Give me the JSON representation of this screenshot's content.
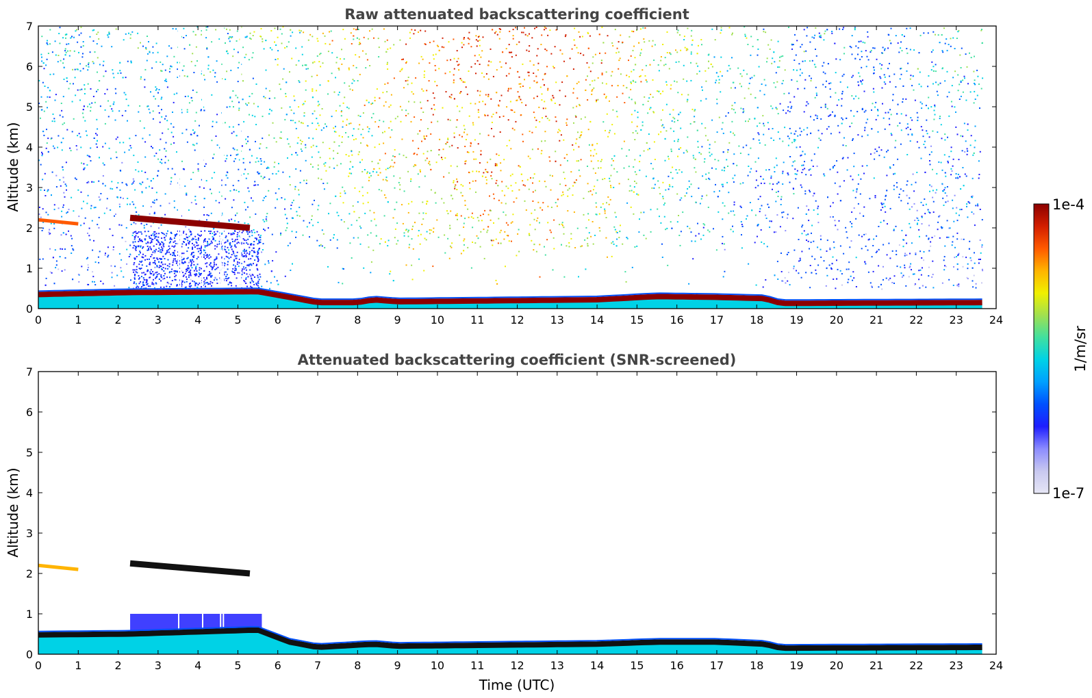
{
  "chart_data": [
    {
      "type": "heatmap",
      "title": "Raw attenuated backscattering coefficient",
      "xlabel": "",
      "ylabel": "Altitude (km)",
      "xlim": [
        0,
        24
      ],
      "ylim": [
        0,
        7
      ],
      "xticks": [
        "0",
        "1",
        "2",
        "3",
        "4",
        "5",
        "6",
        "7",
        "8",
        "9",
        "10",
        "11",
        "12",
        "13",
        "14",
        "15",
        "16",
        "17",
        "18",
        "19",
        "20",
        "21",
        "22",
        "23",
        "24"
      ],
      "yticks": [
        "0",
        "1",
        "2",
        "3",
        "4",
        "5",
        "6",
        "7"
      ],
      "data_time_range": [
        0,
        23.65
      ],
      "surface_layer_top_km": [
        [
          0,
          0.35
        ],
        [
          2.3,
          0.4
        ],
        [
          5.5,
          0.42
        ],
        [
          6.3,
          0.28
        ],
        [
          7,
          0.15
        ],
        [
          8,
          0.15
        ],
        [
          8.4,
          0.22
        ],
        [
          9,
          0.17
        ],
        [
          14,
          0.22
        ],
        [
          15.5,
          0.3
        ],
        [
          17,
          0.28
        ],
        [
          18.2,
          0.25
        ],
        [
          18.6,
          0.13
        ],
        [
          23.6,
          0.15
        ]
      ],
      "cloud_layers": [
        {
          "x_range": [
            2.3,
            5.3
          ],
          "altitude_km": [
            2.25,
            2.0
          ]
        },
        {
          "x_range": [
            0.0,
            1.0
          ],
          "altitude_km": [
            2.2,
            2.1
          ]
        }
      ],
      "missing_profiles_utc": [
        3.5,
        3.55,
        4.1,
        4.55,
        4.62,
        5.05
      ]
    },
    {
      "type": "heatmap",
      "title": "Attenuated backscattering coefficient (SNR-screened)",
      "xlabel": "Time (UTC)",
      "ylabel": "Altitude (km)",
      "xlim": [
        0,
        24
      ],
      "ylim": [
        0,
        7
      ],
      "xticks": [
        "0",
        "1",
        "2",
        "3",
        "4",
        "5",
        "6",
        "7",
        "8",
        "9",
        "10",
        "11",
        "12",
        "13",
        "14",
        "15",
        "16",
        "17",
        "18",
        "19",
        "20",
        "21",
        "22",
        "23",
        "24"
      ],
      "yticks": [
        "0",
        "1",
        "2",
        "3",
        "4",
        "5",
        "6",
        "7"
      ],
      "data_time_range": [
        0,
        23.65
      ],
      "surface_layer_top_km": [
        [
          0,
          0.48
        ],
        [
          2.3,
          0.5
        ],
        [
          5.5,
          0.6
        ],
        [
          6.3,
          0.3
        ],
        [
          7,
          0.17
        ],
        [
          8.4,
          0.25
        ],
        [
          9,
          0.2
        ],
        [
          14,
          0.25
        ],
        [
          15.5,
          0.3
        ],
        [
          17,
          0.3
        ],
        [
          18.2,
          0.25
        ],
        [
          18.6,
          0.15
        ],
        [
          23.6,
          0.17
        ]
      ],
      "aerosol_region": {
        "x_range": [
          2.3,
          5.6
        ],
        "altitude_km": [
          0.3,
          1.0
        ]
      },
      "cloud_layers": [
        {
          "x_range": [
            2.3,
            5.3
          ],
          "altitude_km": [
            2.25,
            2.0
          ]
        },
        {
          "x_range": [
            0.0,
            1.0
          ],
          "altitude_km": [
            2.2,
            2.1
          ]
        }
      ]
    }
  ],
  "colorbar": {
    "label": "1/m/sr",
    "max_label": "1e-4",
    "min_label": "1e-7",
    "scale": "log",
    "range": [
      1e-07,
      0.0001
    ],
    "colormap": [
      "#e6e6f5",
      "#c8c8f0",
      "#8c8cff",
      "#1e1eff",
      "#0050ff",
      "#00a0ff",
      "#00d2e6",
      "#40e0a0",
      "#a0e050",
      "#f0f000",
      "#ffb400",
      "#ff5a00",
      "#d21e00",
      "#8c0000"
    ]
  }
}
